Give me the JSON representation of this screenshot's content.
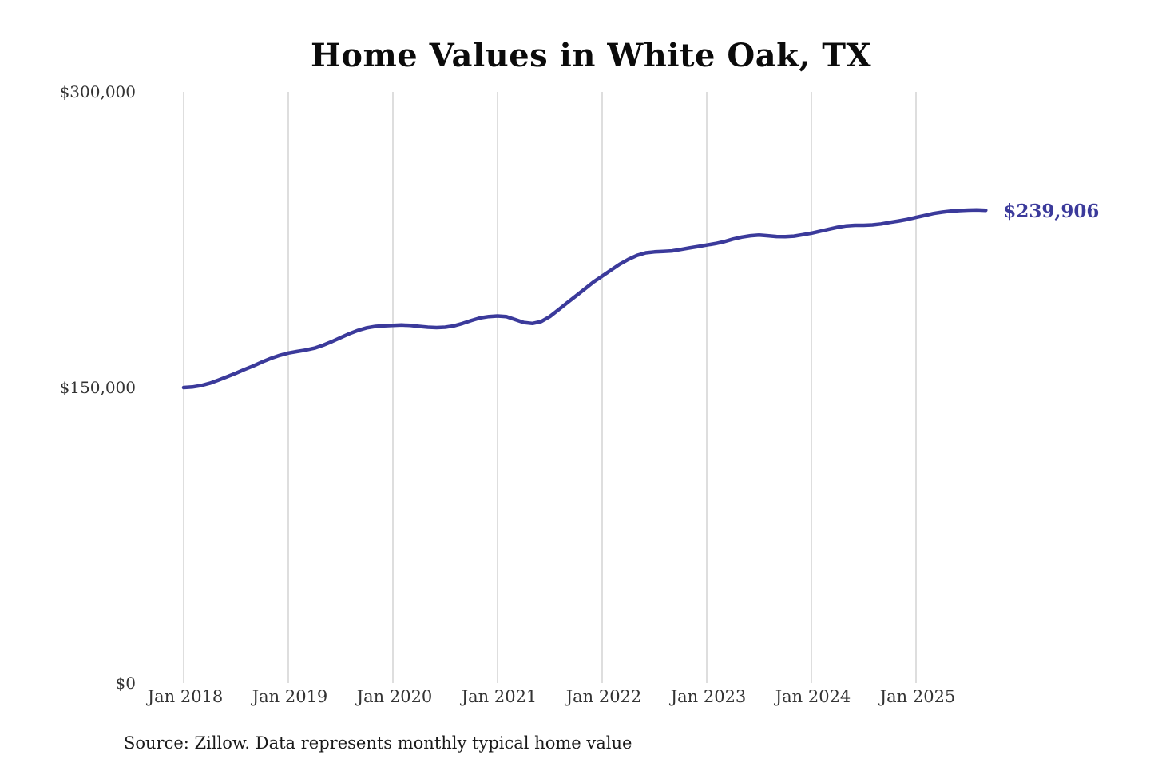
{
  "title": "Home Values in White Oak, TX",
  "source_note": "Source: Zillow. Data represents monthly typical home value",
  "end_label": "$239,906",
  "colors": {
    "line": "#3b3a9b",
    "grid": "#cccccc",
    "title_text": "#0b0b0b",
    "axis_text": "#333333",
    "end_label_text": "#3b3a9b"
  },
  "chart_data": {
    "type": "line",
    "title": "Home Values in White Oak, TX",
    "xlabel": "",
    "ylabel": "",
    "unit": "USD",
    "ylim": [
      0,
      300000
    ],
    "grid": "vertical-only",
    "y_ticks": [
      {
        "value": 0,
        "label": "$0"
      },
      {
        "value": 150000,
        "label": "$150,000"
      },
      {
        "value": 300000,
        "label": "$300,000"
      }
    ],
    "x_tick_labels": [
      "Jan 2018",
      "Jan 2019",
      "Jan 2020",
      "Jan 2021",
      "Jan 2022",
      "Jan 2023",
      "Jan 2024",
      "Jan 2025"
    ],
    "series": [
      {
        "name": "Typical home value",
        "start": "2018-01",
        "frequency": "monthly",
        "values": [
          150000,
          150300,
          151000,
          152200,
          153800,
          155500,
          157300,
          159200,
          161000,
          163000,
          164800,
          166300,
          167500,
          168300,
          169000,
          170000,
          171500,
          173300,
          175300,
          177300,
          179000,
          180300,
          181000,
          181300,
          181500,
          181700,
          181500,
          181000,
          180600,
          180400,
          180600,
          181300,
          182500,
          184000,
          185300,
          186000,
          186300,
          186000,
          184500,
          183000,
          182500,
          183500,
          186000,
          189500,
          193000,
          196500,
          200000,
          203500,
          206500,
          209500,
          212500,
          215000,
          217000,
          218300,
          218800,
          219000,
          219300,
          220000,
          220800,
          221500,
          222300,
          223000,
          224000,
          225300,
          226300,
          227000,
          227300,
          227000,
          226600,
          226500,
          226800,
          227500,
          228300,
          229300,
          230300,
          231300,
          232000,
          232300,
          232300,
          232500,
          233000,
          233800,
          234500,
          235300,
          236300,
          237300,
          238300,
          239000,
          239500,
          239800,
          240000,
          240100,
          239906
        ]
      }
    ],
    "final_value": 239906,
    "final_value_label": "$239,906"
  }
}
